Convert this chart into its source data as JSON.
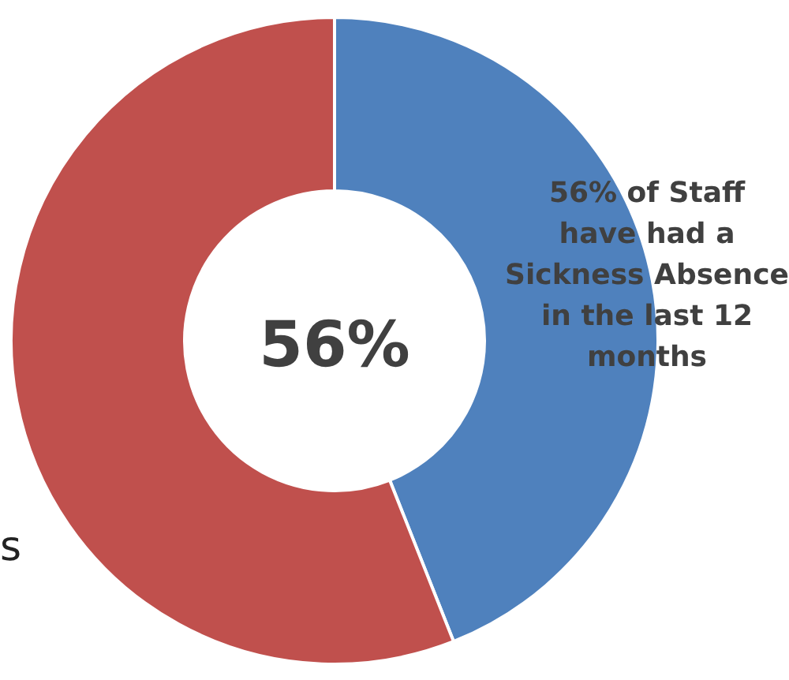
{
  "chart_data": {
    "type": "donut",
    "categories": [
      null,
      null
    ],
    "values": [
      44,
      56
    ],
    "colors": [
      "#4f81bd",
      "#c0504d"
    ],
    "annotations": [
      "56%",
      "56% of Staff have had a Sickness Absence in the last 12 months",
      "s"
    ]
  }
}
